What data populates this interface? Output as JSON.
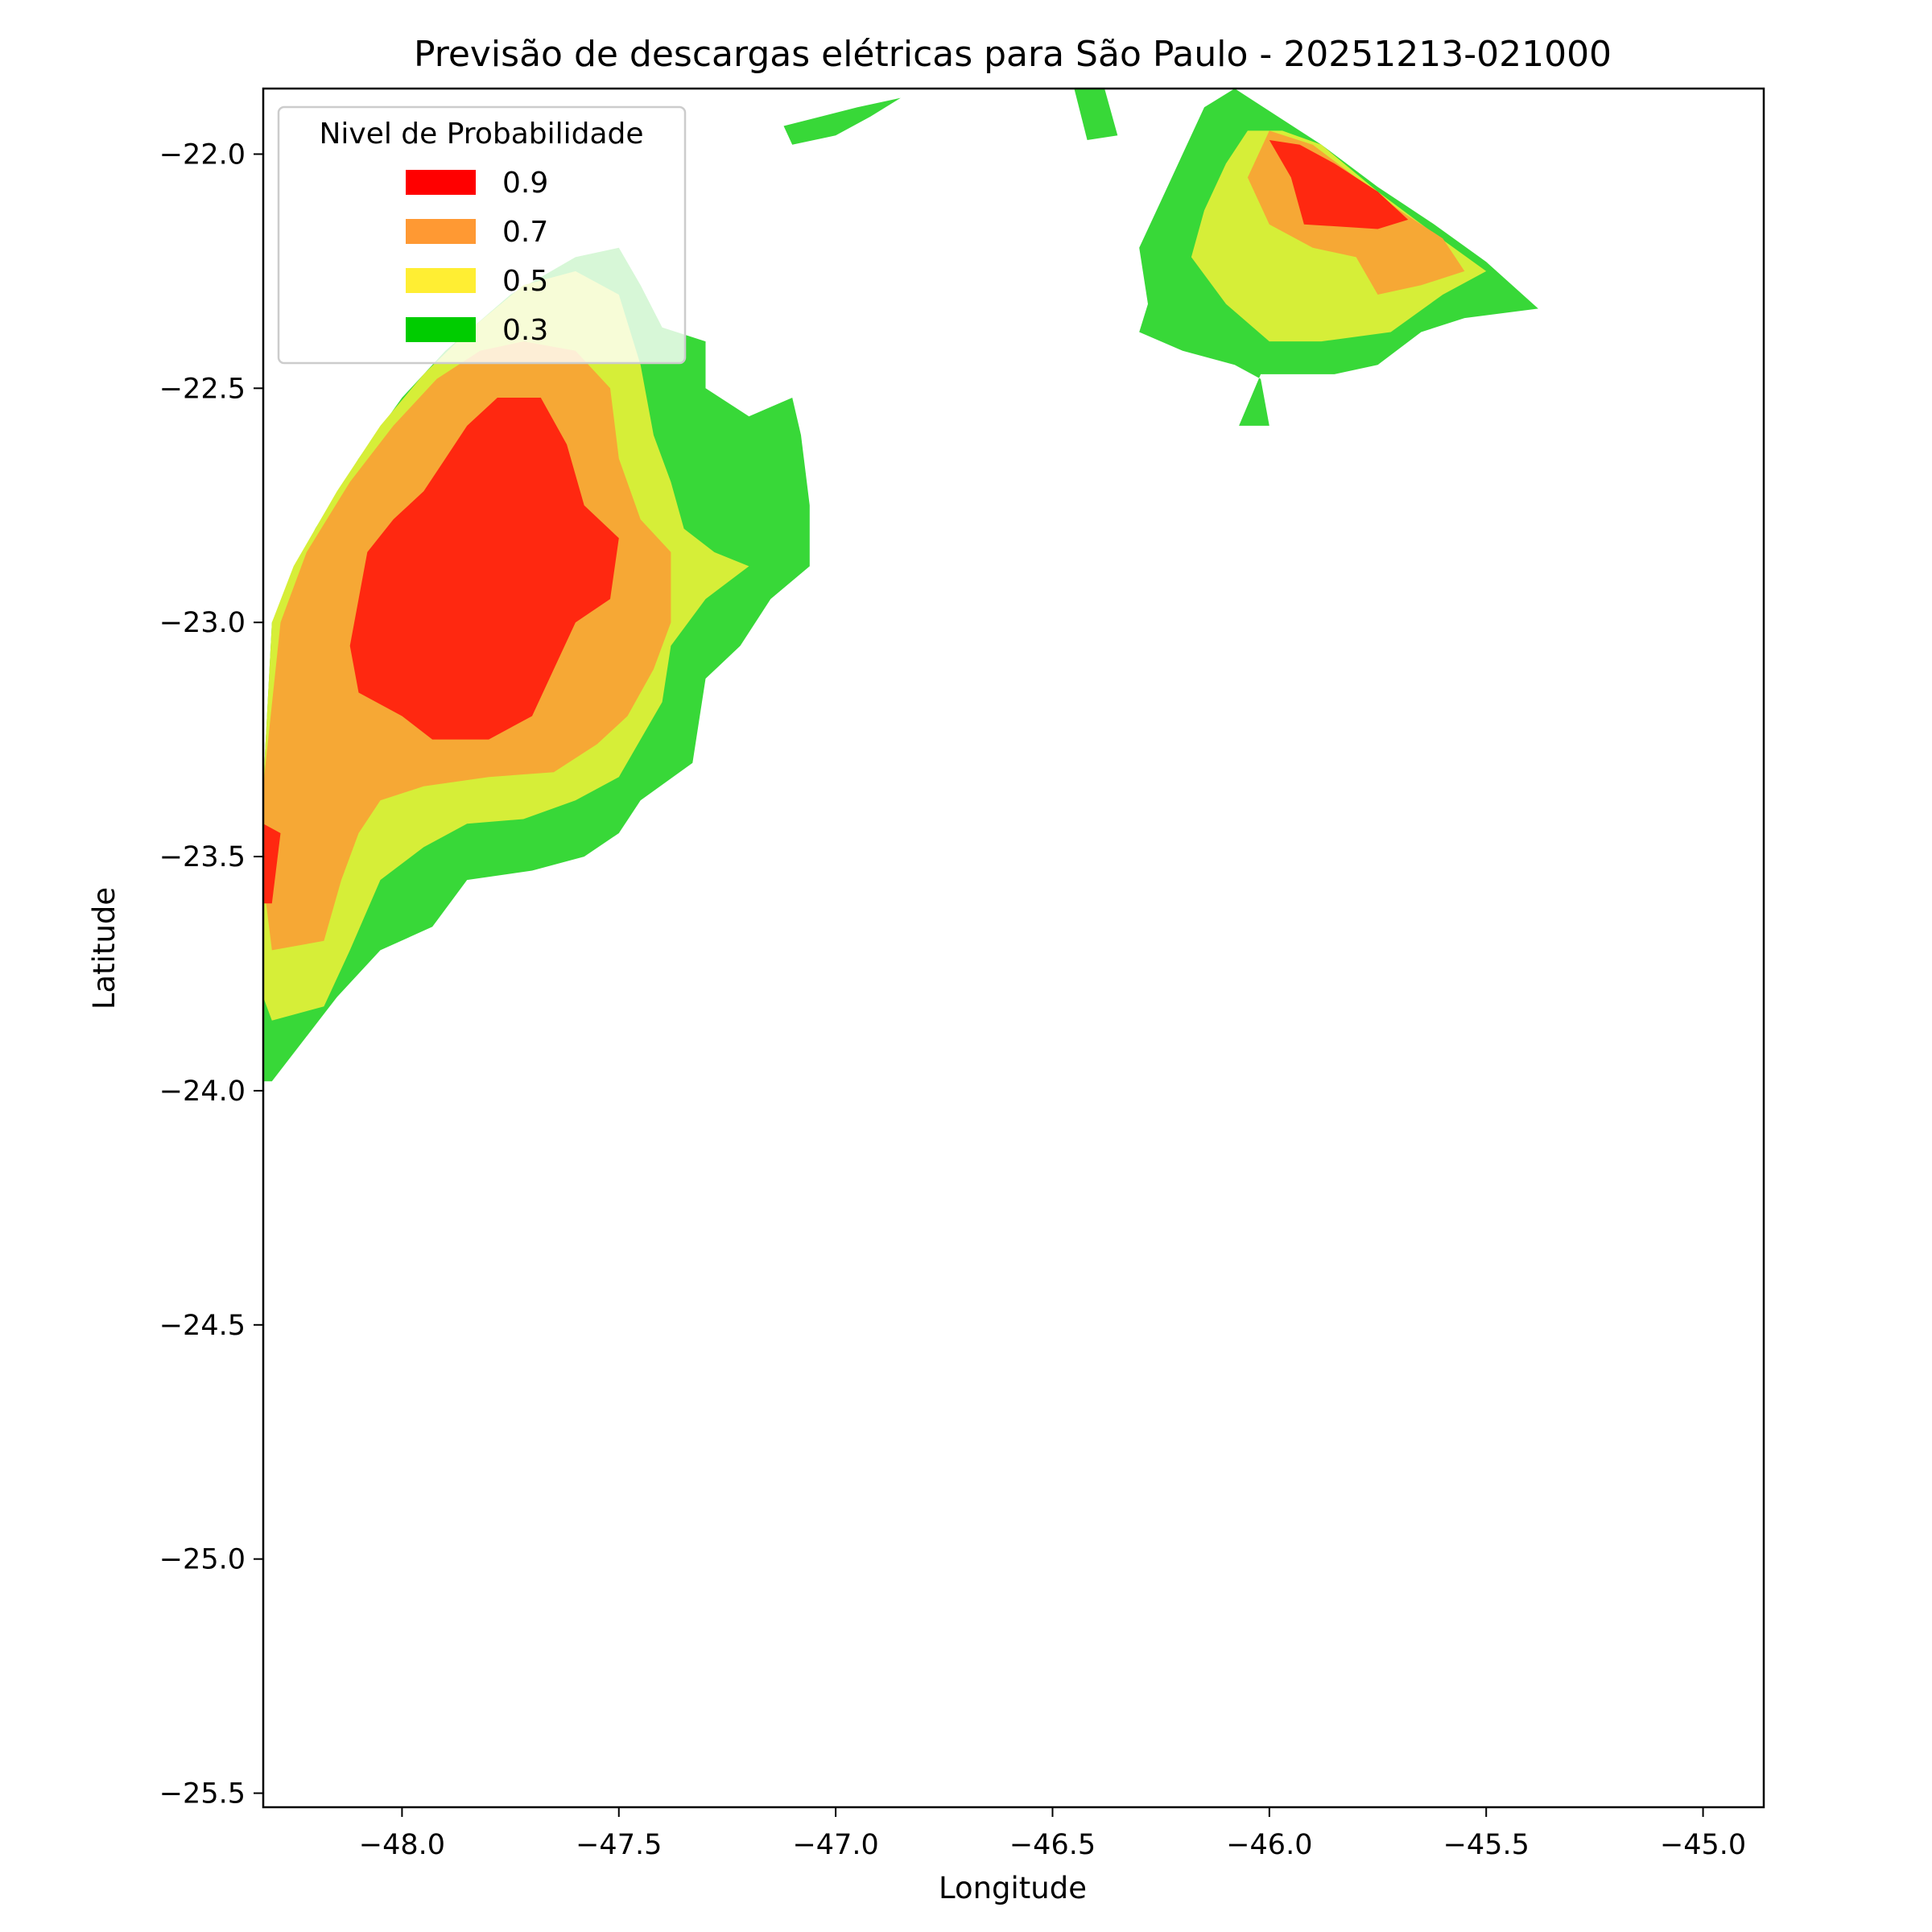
{
  "chart_data": {
    "type": "contour",
    "title": "Previsão de descargas elétricas para São Paulo - 20251213-021000",
    "xlabel": "Longitude",
    "ylabel": "Latitude",
    "xlim": [
      -48.32,
      -44.86
    ],
    "ylim": [
      -25.53,
      -21.86
    ],
    "xticks": [
      -48.0,
      -47.5,
      -47.0,
      -46.5,
      -46.0,
      -45.5,
      -45.0
    ],
    "xtick_labels": [
      "−48.0",
      "−47.5",
      "−47.0",
      "−46.5",
      "−46.0",
      "−45.5",
      "−45.0"
    ],
    "yticks": [
      -22.0,
      -22.5,
      -23.0,
      -23.5,
      -24.0,
      -24.5,
      -25.0,
      -25.5
    ],
    "ytick_labels": [
      "−22.0",
      "−22.5",
      "−23.0",
      "−23.5",
      "−24.0",
      "−24.5",
      "−25.0",
      "−25.5"
    ],
    "grid": false,
    "legend": {
      "title": "Nivel de Probabilidade",
      "placement": "top-left",
      "entries": [
        {
          "label": "0.9",
          "color": "#ff0000"
        },
        {
          "label": "0.7",
          "color": "#ff9933"
        },
        {
          "label": "0.5",
          "color": "#ffee33"
        },
        {
          "label": "0.3",
          "color": "#00cc00"
        }
      ]
    },
    "fill_colors": {
      "0.3": "#38d838",
      "0.5": "#d6ee38",
      "0.7": "#f6a835",
      "0.9": "#ff2810"
    },
    "regions": [
      {
        "name": "western-cell",
        "level": 0.3,
        "lonlat": [
          [
            -47.4,
            -22.37
          ],
          [
            -47.3,
            -22.4
          ],
          [
            -47.3,
            -22.5
          ],
          [
            -47.2,
            -22.56
          ],
          [
            -47.1,
            -22.52
          ],
          [
            -47.08,
            -22.6
          ],
          [
            -47.06,
            -22.75
          ],
          [
            -47.06,
            -22.88
          ],
          [
            -47.15,
            -22.95
          ],
          [
            -47.22,
            -23.05
          ],
          [
            -47.3,
            -23.12
          ],
          [
            -47.33,
            -23.3
          ],
          [
            -47.45,
            -23.38
          ],
          [
            -47.5,
            -23.45
          ],
          [
            -47.58,
            -23.5
          ],
          [
            -47.7,
            -23.53
          ],
          [
            -47.85,
            -23.55
          ],
          [
            -47.93,
            -23.65
          ],
          [
            -48.05,
            -23.7
          ],
          [
            -48.15,
            -23.8
          ],
          [
            -48.3,
            -23.98
          ],
          [
            -48.32,
            -23.98
          ],
          [
            -48.32,
            -23.35
          ],
          [
            -48.3,
            -23.0
          ],
          [
            -48.25,
            -22.9
          ],
          [
            -48.2,
            -22.8
          ],
          [
            -48.1,
            -22.65
          ],
          [
            -48.0,
            -22.52
          ],
          [
            -47.9,
            -22.42
          ],
          [
            -47.75,
            -22.3
          ],
          [
            -47.6,
            -22.22
          ],
          [
            -47.5,
            -22.2
          ],
          [
            -47.45,
            -22.28
          ]
        ]
      },
      {
        "name": "western-cell",
        "level": 0.5,
        "lonlat": [
          [
            -47.5,
            -22.3
          ],
          [
            -47.45,
            -22.45
          ],
          [
            -47.42,
            -22.6
          ],
          [
            -47.38,
            -22.7
          ],
          [
            -47.35,
            -22.8
          ],
          [
            -47.28,
            -22.85
          ],
          [
            -47.2,
            -22.88
          ],
          [
            -47.3,
            -22.95
          ],
          [
            -47.38,
            -23.05
          ],
          [
            -47.4,
            -23.17
          ],
          [
            -47.45,
            -23.25
          ],
          [
            -47.5,
            -23.33
          ],
          [
            -47.6,
            -23.38
          ],
          [
            -47.72,
            -23.42
          ],
          [
            -47.85,
            -23.43
          ],
          [
            -47.95,
            -23.48
          ],
          [
            -48.05,
            -23.55
          ],
          [
            -48.12,
            -23.7
          ],
          [
            -48.18,
            -23.82
          ],
          [
            -48.3,
            -23.85
          ],
          [
            -48.32,
            -23.8
          ],
          [
            -48.32,
            -23.35
          ],
          [
            -48.3,
            -23.0
          ],
          [
            -48.25,
            -22.88
          ],
          [
            -48.15,
            -22.72
          ],
          [
            -48.05,
            -22.58
          ],
          [
            -47.95,
            -22.47
          ],
          [
            -47.85,
            -22.38
          ],
          [
            -47.72,
            -22.28
          ],
          [
            -47.6,
            -22.25
          ]
        ]
      },
      {
        "name": "western-cell",
        "level": 0.7,
        "lonlat": [
          [
            -47.72,
            -22.4
          ],
          [
            -47.6,
            -22.42
          ],
          [
            -47.52,
            -22.5
          ],
          [
            -47.5,
            -22.65
          ],
          [
            -47.45,
            -22.78
          ],
          [
            -47.38,
            -22.85
          ],
          [
            -47.38,
            -23.0
          ],
          [
            -47.42,
            -23.1
          ],
          [
            -47.48,
            -23.2
          ],
          [
            -47.55,
            -23.26
          ],
          [
            -47.65,
            -23.32
          ],
          [
            -47.8,
            -23.33
          ],
          [
            -47.95,
            -23.35
          ],
          [
            -48.05,
            -23.38
          ],
          [
            -48.1,
            -23.45
          ],
          [
            -48.14,
            -23.55
          ],
          [
            -48.18,
            -23.68
          ],
          [
            -48.3,
            -23.7
          ],
          [
            -48.32,
            -23.55
          ],
          [
            -48.32,
            -23.35
          ],
          [
            -48.28,
            -23.0
          ],
          [
            -48.22,
            -22.85
          ],
          [
            -48.12,
            -22.7
          ],
          [
            -48.02,
            -22.58
          ],
          [
            -47.92,
            -22.48
          ],
          [
            -47.82,
            -22.42
          ]
        ]
      },
      {
        "name": "western-cell",
        "level": 0.9,
        "lonlat": [
          [
            -47.78,
            -22.52
          ],
          [
            -47.68,
            -22.52
          ],
          [
            -47.62,
            -22.62
          ],
          [
            -47.58,
            -22.75
          ],
          [
            -47.5,
            -22.82
          ],
          [
            -47.52,
            -22.95
          ],
          [
            -47.6,
            -23.0
          ],
          [
            -47.65,
            -23.1
          ],
          [
            -47.7,
            -23.2
          ],
          [
            -47.8,
            -23.25
          ],
          [
            -47.93,
            -23.25
          ],
          [
            -48.0,
            -23.2
          ],
          [
            -48.1,
            -23.15
          ],
          [
            -48.12,
            -23.05
          ],
          [
            -48.1,
            -22.95
          ],
          [
            -48.08,
            -22.85
          ],
          [
            -48.02,
            -22.78
          ],
          [
            -47.95,
            -22.72
          ],
          [
            -47.9,
            -22.65
          ],
          [
            -47.85,
            -22.58
          ]
        ]
      },
      {
        "name": "west-edge-spot",
        "level": 0.9,
        "lonlat": [
          [
            -48.32,
            -23.43
          ],
          [
            -48.28,
            -23.45
          ],
          [
            -48.3,
            -23.6
          ],
          [
            -48.32,
            -23.6
          ]
        ]
      },
      {
        "name": "northern-fragment",
        "level": 0.3,
        "lonlat": [
          [
            -47.12,
            -21.94
          ],
          [
            -46.95,
            -21.9
          ],
          [
            -46.85,
            -21.88
          ],
          [
            -46.92,
            -21.92
          ],
          [
            -47.0,
            -21.96
          ],
          [
            -47.1,
            -21.98
          ]
        ]
      },
      {
        "name": "northeastern-cell",
        "level": 0.3,
        "lonlat": [
          [
            -46.08,
            -21.86
          ],
          [
            -46.15,
            -21.9
          ],
          [
            -46.2,
            -22.0
          ],
          [
            -46.25,
            -22.1
          ],
          [
            -46.3,
            -22.2
          ],
          [
            -46.28,
            -22.32
          ],
          [
            -46.3,
            -22.38
          ],
          [
            -46.2,
            -22.42
          ],
          [
            -46.08,
            -22.45
          ],
          [
            -46.02,
            -22.48
          ],
          [
            -46.0,
            -22.58
          ],
          [
            -46.07,
            -22.58
          ],
          [
            -46.02,
            -22.47
          ],
          [
            -45.85,
            -22.47
          ],
          [
            -45.75,
            -22.45
          ],
          [
            -45.65,
            -22.38
          ],
          [
            -45.55,
            -22.35
          ],
          [
            -45.38,
            -22.33
          ],
          [
            -45.5,
            -22.23
          ],
          [
            -45.62,
            -22.15
          ],
          [
            -45.75,
            -22.07
          ],
          [
            -45.88,
            -21.98
          ],
          [
            -45.98,
            -21.92
          ]
        ]
      },
      {
        "name": "northeastern-cell",
        "level": 0.5,
        "lonlat": [
          [
            -46.05,
            -21.95
          ],
          [
            -46.1,
            -22.02
          ],
          [
            -46.15,
            -22.12
          ],
          [
            -46.18,
            -22.22
          ],
          [
            -46.1,
            -22.32
          ],
          [
            -46.0,
            -22.4
          ],
          [
            -45.88,
            -22.4
          ],
          [
            -45.72,
            -22.38
          ],
          [
            -45.6,
            -22.3
          ],
          [
            -45.5,
            -22.25
          ],
          [
            -45.62,
            -22.17
          ],
          [
            -45.75,
            -22.08
          ],
          [
            -45.88,
            -21.98
          ],
          [
            -45.97,
            -21.95
          ]
        ]
      },
      {
        "name": "northeastern-cell",
        "level": 0.7,
        "lonlat": [
          [
            -46.0,
            -21.95
          ],
          [
            -46.05,
            -22.05
          ],
          [
            -46.0,
            -22.15
          ],
          [
            -45.9,
            -22.2
          ],
          [
            -45.8,
            -22.22
          ],
          [
            -45.75,
            -22.3
          ],
          [
            -45.65,
            -22.28
          ],
          [
            -45.55,
            -22.25
          ],
          [
            -45.6,
            -22.18
          ],
          [
            -45.7,
            -22.12
          ],
          [
            -45.8,
            -22.05
          ],
          [
            -45.9,
            -21.98
          ]
        ]
      },
      {
        "name": "northeastern-cell",
        "level": 0.9,
        "lonlat": [
          [
            -46.0,
            -21.97
          ],
          [
            -45.95,
            -22.05
          ],
          [
            -45.92,
            -22.15
          ],
          [
            -45.75,
            -22.16
          ],
          [
            -45.68,
            -22.14
          ],
          [
            -45.75,
            -22.08
          ],
          [
            -45.85,
            -22.02
          ],
          [
            -45.93,
            -21.98
          ]
        ]
      },
      {
        "name": "northeastern-strip",
        "level": 0.3,
        "lonlat": [
          [
            -46.45,
            -21.86
          ],
          [
            -46.38,
            -21.86
          ],
          [
            -46.35,
            -21.96
          ],
          [
            -46.42,
            -21.97
          ]
        ]
      }
    ]
  }
}
